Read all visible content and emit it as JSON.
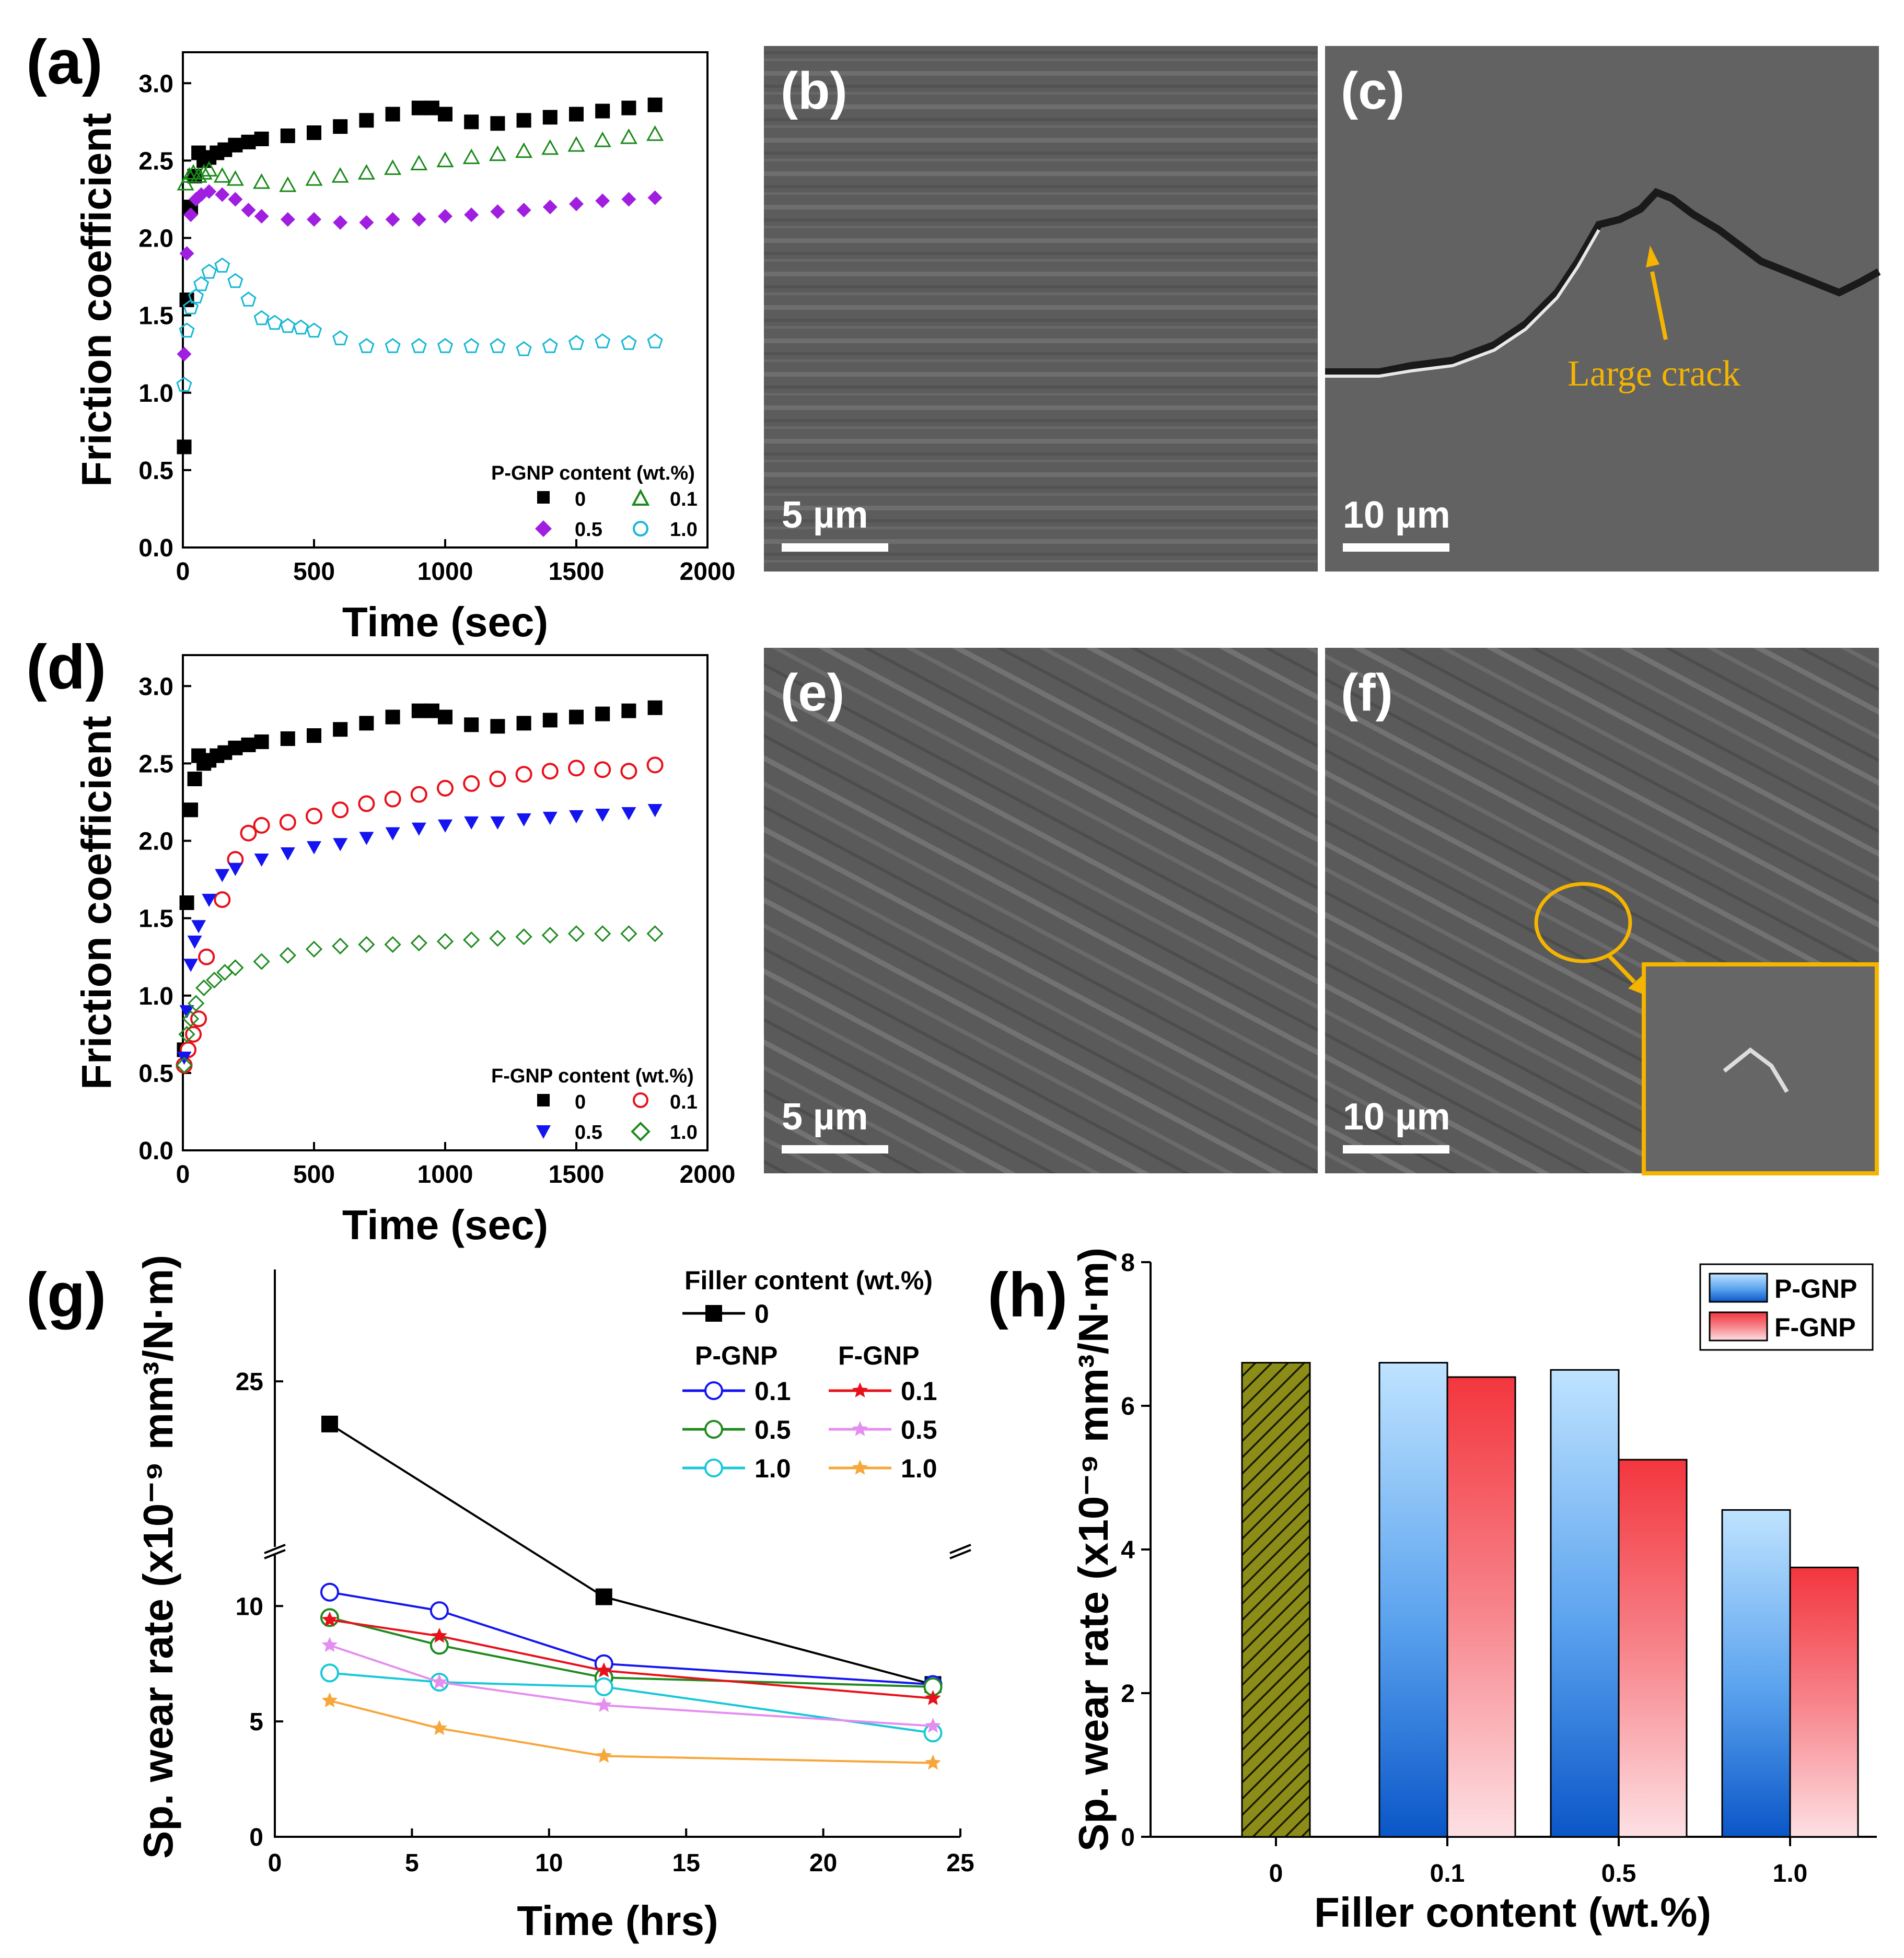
{
  "panel_labels": {
    "a": "(a)",
    "b": "(b)",
    "c": "(c)",
    "d": "(d)",
    "e": "(e)",
    "f": "(f)",
    "g": "(g)",
    "h": "(h)"
  },
  "sem": {
    "b": {
      "scale_label": "5 µm"
    },
    "c": {
      "scale_label": "10 µm",
      "annotation": "Large crack"
    },
    "e": {
      "scale_label": "5 µm"
    },
    "f": {
      "scale_label": "10 µm"
    }
  },
  "colors": {
    "black": "#000000",
    "green": "#1a8a1a",
    "purple": "#a01ee0",
    "cyan": "#16b8d4",
    "red": "#e8101a",
    "blue": "#1414f0",
    "dkgreen": "#1f8a1f",
    "lilac": "#e48ef0",
    "orange": "#f7a63a",
    "annotation": "#f4b400",
    "olive": "#8c8c18"
  },
  "chart_data": [
    {
      "id": "a",
      "type": "scatter",
      "xlabel": "Time (sec)",
      "ylabel": "Friction coefficient",
      "xlim": [
        0,
        2000
      ],
      "ylim": [
        0,
        3.2
      ],
      "xticks": [
        "0",
        "500",
        "1000",
        "1500",
        "2000"
      ],
      "yticks": [
        "0.0",
        "0.5",
        "1.0",
        "1.5",
        "2.0",
        "2.5",
        "3.0"
      ],
      "legend_title": "P-GNP content (wt.%)",
      "series": [
        {
          "name": "0",
          "marker": "square-filled",
          "color": "#000000",
          "x": [
            5,
            15,
            30,
            45,
            60,
            80,
            100,
            130,
            160,
            200,
            250,
            300,
            400,
            500,
            600,
            700,
            800,
            900,
            950,
            1000,
            1100,
            1200,
            1300,
            1400,
            1500,
            1600,
            1700,
            1800
          ],
          "y": [
            0.65,
            1.6,
            2.2,
            2.4,
            2.55,
            2.5,
            2.52,
            2.55,
            2.57,
            2.6,
            2.62,
            2.64,
            2.66,
            2.68,
            2.72,
            2.76,
            2.8,
            2.84,
            2.84,
            2.8,
            2.75,
            2.74,
            2.76,
            2.78,
            2.8,
            2.82,
            2.84,
            2.86
          ]
        },
        {
          "name": "0.1",
          "marker": "triangle-open",
          "color": "#1a8a1a",
          "x": [
            10,
            25,
            40,
            60,
            80,
            100,
            150,
            200,
            300,
            400,
            500,
            600,
            700,
            800,
            900,
            1000,
            1100,
            1200,
            1300,
            1400,
            1500,
            1600,
            1700,
            1800
          ],
          "y": [
            2.35,
            2.4,
            2.42,
            2.4,
            2.42,
            2.44,
            2.4,
            2.38,
            2.36,
            2.34,
            2.38,
            2.4,
            2.42,
            2.45,
            2.48,
            2.5,
            2.52,
            2.54,
            2.56,
            2.58,
            2.6,
            2.63,
            2.65,
            2.67
          ]
        },
        {
          "name": "0.5",
          "marker": "diamond-filled",
          "color": "#a01ee0",
          "x": [
            5,
            15,
            30,
            50,
            70,
            100,
            150,
            200,
            250,
            300,
            400,
            500,
            600,
            700,
            800,
            900,
            1000,
            1100,
            1200,
            1300,
            1400,
            1500,
            1600,
            1700,
            1800
          ],
          "y": [
            1.25,
            1.9,
            2.15,
            2.25,
            2.28,
            2.3,
            2.28,
            2.25,
            2.18,
            2.14,
            2.12,
            2.12,
            2.1,
            2.1,
            2.12,
            2.12,
            2.14,
            2.15,
            2.17,
            2.18,
            2.2,
            2.22,
            2.24,
            2.25,
            2.26
          ]
        },
        {
          "name": "1.0",
          "marker": "pentagon-open",
          "color": "#16b8d4",
          "x": [
            5,
            15,
            30,
            50,
            70,
            100,
            150,
            200,
            250,
            300,
            350,
            400,
            450,
            500,
            600,
            700,
            800,
            900,
            1000,
            1100,
            1200,
            1300,
            1400,
            1500,
            1600,
            1700,
            1800
          ],
          "y": [
            1.05,
            1.4,
            1.55,
            1.62,
            1.7,
            1.78,
            1.82,
            1.72,
            1.6,
            1.48,
            1.45,
            1.43,
            1.42,
            1.4,
            1.35,
            1.3,
            1.3,
            1.3,
            1.3,
            1.3,
            1.3,
            1.28,
            1.3,
            1.32,
            1.33,
            1.32,
            1.33
          ]
        }
      ]
    },
    {
      "id": "d",
      "type": "scatter",
      "xlabel": "Time (sec)",
      "ylabel": "Friction coefficient",
      "xlim": [
        0,
        2000
      ],
      "ylim": [
        0,
        3.2
      ],
      "xticks": [
        "0",
        "500",
        "1000",
        "1500",
        "2000"
      ],
      "yticks": [
        "0.0",
        "0.5",
        "1.0",
        "1.5",
        "2.0",
        "2.5",
        "3.0"
      ],
      "legend_title": "F-GNP content (wt.%)",
      "series": [
        {
          "name": "0",
          "marker": "square-filled",
          "color": "#000000",
          "x": [
            5,
            15,
            30,
            45,
            60,
            80,
            100,
            130,
            160,
            200,
            250,
            300,
            400,
            500,
            600,
            700,
            800,
            900,
            950,
            1000,
            1100,
            1200,
            1300,
            1400,
            1500,
            1600,
            1700,
            1800
          ],
          "y": [
            0.65,
            1.6,
            2.2,
            2.4,
            2.55,
            2.5,
            2.52,
            2.55,
            2.57,
            2.6,
            2.62,
            2.64,
            2.66,
            2.68,
            2.72,
            2.76,
            2.8,
            2.84,
            2.84,
            2.8,
            2.75,
            2.74,
            2.76,
            2.78,
            2.8,
            2.82,
            2.84,
            2.86
          ]
        },
        {
          "name": "0.1",
          "marker": "circle-open",
          "color": "#e8101a",
          "x": [
            5,
            20,
            40,
            60,
            90,
            150,
            200,
            250,
            300,
            400,
            500,
            600,
            700,
            800,
            900,
            1000,
            1100,
            1200,
            1300,
            1400,
            1500,
            1600,
            1700,
            1800
          ],
          "y": [
            0.55,
            0.65,
            0.75,
            0.85,
            1.25,
            1.62,
            1.88,
            2.05,
            2.1,
            2.12,
            2.16,
            2.2,
            2.24,
            2.27,
            2.3,
            2.34,
            2.37,
            2.4,
            2.43,
            2.45,
            2.47,
            2.46,
            2.45,
            2.49
          ]
        },
        {
          "name": "0.5",
          "marker": "triangle-down-filled",
          "color": "#1414f0",
          "x": [
            5,
            15,
            30,
            45,
            60,
            100,
            150,
            200,
            300,
            400,
            500,
            600,
            700,
            800,
            900,
            1000,
            1100,
            1200,
            1300,
            1400,
            1500,
            1600,
            1700,
            1800
          ],
          "y": [
            0.6,
            0.9,
            1.2,
            1.35,
            1.45,
            1.62,
            1.78,
            1.82,
            1.88,
            1.92,
            1.96,
            1.98,
            2.02,
            2.05,
            2.08,
            2.1,
            2.12,
            2.12,
            2.14,
            2.15,
            2.16,
            2.17,
            2.18,
            2.2
          ]
        },
        {
          "name": "1.0",
          "marker": "diamond-open",
          "color": "#1f8a1f",
          "x": [
            5,
            15,
            30,
            50,
            80,
            120,
            160,
            200,
            300,
            400,
            500,
            600,
            700,
            800,
            900,
            1000,
            1100,
            1200,
            1300,
            1400,
            1500,
            1600,
            1700,
            1800
          ],
          "y": [
            0.55,
            0.75,
            0.85,
            0.95,
            1.05,
            1.1,
            1.15,
            1.18,
            1.22,
            1.26,
            1.3,
            1.32,
            1.33,
            1.33,
            1.34,
            1.35,
            1.36,
            1.37,
            1.38,
            1.39,
            1.4,
            1.4,
            1.4,
            1.4
          ]
        }
      ]
    },
    {
      "id": "g",
      "type": "line",
      "xlabel": "Time (hrs)",
      "ylabel": "Sp. wear rate (x10⁻⁹ mm³/N·m)",
      "xlim": [
        0,
        25
      ],
      "xticks": [
        "0",
        "5",
        "10",
        "15",
        "20",
        "25"
      ],
      "yticks_lower": [
        "0",
        "5",
        "10"
      ],
      "yticks_upper": [
        "25"
      ],
      "axis_break": {
        "lower": [
          0,
          11.5
        ],
        "upper": [
          18,
          30
        ]
      },
      "legend_title": "Filler content (wt.%)",
      "legend_group_labels": [
        "P-GNP",
        "F-GNP"
      ],
      "x": [
        2,
        6,
        12,
        24
      ],
      "series": [
        {
          "name": "0",
          "group": "",
          "marker": "square-filled",
          "color": "#000000",
          "y": [
            23,
            null,
            10.4,
            6.6
          ]
        },
        {
          "name": "0.1",
          "group": "P-GNP",
          "marker": "circle-open",
          "color": "#1414f0",
          "y": [
            10.6,
            9.8,
            7.5,
            6.6
          ]
        },
        {
          "name": "0.5",
          "group": "P-GNP",
          "marker": "circle-open",
          "color": "#1f8a1f",
          "y": [
            9.5,
            8.3,
            6.9,
            6.5
          ]
        },
        {
          "name": "1.0",
          "group": "P-GNP",
          "marker": "circle-open",
          "color": "#16c8d8",
          "y": [
            7.1,
            6.7,
            6.5,
            4.5
          ]
        },
        {
          "name": "0.1",
          "group": "F-GNP",
          "marker": "star-filled",
          "color": "#e8101a",
          "y": [
            9.4,
            8.7,
            7.2,
            6.0
          ]
        },
        {
          "name": "0.5",
          "group": "F-GNP",
          "marker": "star-filled",
          "color": "#e48ef0",
          "y": [
            8.3,
            6.7,
            5.7,
            4.8
          ]
        },
        {
          "name": "1.0",
          "group": "F-GNP",
          "marker": "star-filled",
          "color": "#f7a63a",
          "y": [
            5.9,
            4.7,
            3.5,
            3.2
          ]
        }
      ]
    },
    {
      "id": "h",
      "type": "bar",
      "xlabel": "Filler content (wt.%)",
      "ylabel": "Sp. wear rate (x10⁻⁹ mm³/N·m)",
      "ylim": [
        0,
        8
      ],
      "yticks": [
        "0",
        "2",
        "4",
        "6",
        "8"
      ],
      "categories": [
        "0",
        "0.1",
        "0.5",
        "1.0"
      ],
      "series": [
        {
          "name": "",
          "values": [
            6.6,
            null,
            null,
            null
          ]
        },
        {
          "name": "P-GNP",
          "values": [
            null,
            6.6,
            6.5,
            4.55
          ]
        },
        {
          "name": "F-GNP",
          "values": [
            null,
            6.4,
            5.25,
            3.75
          ]
        }
      ]
    }
  ]
}
